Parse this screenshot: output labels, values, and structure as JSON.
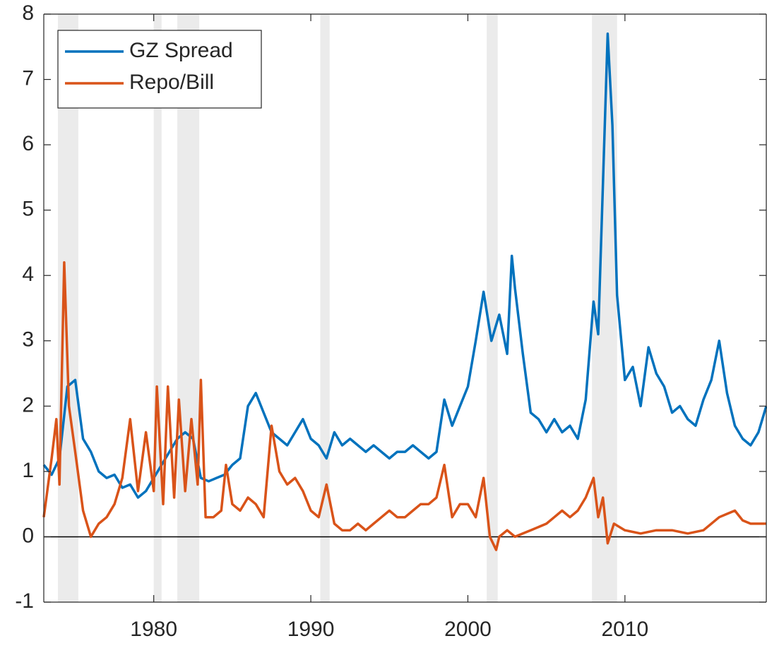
{
  "chart_data": {
    "type": "line",
    "xlim": [
      1973,
      2019
    ],
    "xticks": [
      1980,
      1990,
      2000,
      2010
    ],
    "ylim": [
      -1,
      8
    ],
    "yticks": [
      -1,
      0,
      1,
      2,
      3,
      4,
      5,
      6,
      7,
      8
    ],
    "reference_line": 0,
    "shaded_regions": [
      [
        1973.9,
        1975.2
      ],
      [
        1980.0,
        1980.5
      ],
      [
        1981.5,
        1982.9
      ],
      [
        1990.6,
        1991.2
      ],
      [
        2001.2,
        2001.9
      ],
      [
        2007.9,
        2009.5
      ]
    ],
    "legend": "upper-left",
    "series": [
      {
        "name": "GZ Spread",
        "color": "#0072bd",
        "x": [
          1973,
          1973.5,
          1974,
          1974.5,
          1975,
          1975.5,
          1976,
          1976.5,
          1977,
          1977.5,
          1978,
          1978.5,
          1979,
          1979.5,
          1980,
          1980.5,
          1981,
          1981.5,
          1982,
          1982.5,
          1983,
          1983.5,
          1984,
          1984.5,
          1985,
          1985.5,
          1986,
          1986.5,
          1987,
          1987.5,
          1988,
          1988.5,
          1989,
          1989.5,
          1990,
          1990.5,
          1991,
          1991.5,
          1992,
          1992.5,
          1993,
          1993.5,
          1994,
          1994.5,
          1995,
          1995.5,
          1996,
          1996.5,
          1997,
          1997.5,
          1998,
          1998.5,
          1999,
          1999.5,
          2000,
          2000.5,
          2001,
          2001.5,
          2002,
          2002.5,
          2002.8,
          2003,
          2003.5,
          2004,
          2004.5,
          2005,
          2005.5,
          2006,
          2006.5,
          2007,
          2007.5,
          2008,
          2008.3,
          2008.9,
          2009.2,
          2009.5,
          2010,
          2010.5,
          2011,
          2011.5,
          2012,
          2012.5,
          2013,
          2013.5,
          2014,
          2014.5,
          2015,
          2015.5,
          2016,
          2016.5,
          2017,
          2017.5,
          2018,
          2018.5,
          2019
        ],
        "values": [
          1.1,
          0.95,
          1.2,
          2.3,
          2.4,
          1.5,
          1.3,
          1.0,
          0.9,
          0.95,
          0.75,
          0.8,
          0.6,
          0.7,
          0.9,
          1.1,
          1.3,
          1.5,
          1.6,
          1.5,
          0.9,
          0.85,
          0.9,
          0.95,
          1.1,
          1.2,
          2.0,
          2.2,
          1.9,
          1.6,
          1.5,
          1.4,
          1.6,
          1.8,
          1.5,
          1.4,
          1.2,
          1.6,
          1.4,
          1.5,
          1.4,
          1.3,
          1.4,
          1.3,
          1.2,
          1.3,
          1.3,
          1.4,
          1.3,
          1.2,
          1.3,
          2.1,
          1.7,
          2.0,
          2.3,
          3.0,
          3.75,
          3.0,
          3.4,
          2.8,
          4.3,
          3.8,
          2.8,
          1.9,
          1.8,
          1.6,
          1.8,
          1.6,
          1.7,
          1.5,
          2.1,
          3.6,
          3.1,
          7.7,
          6.3,
          3.7,
          2.4,
          2.6,
          2.0,
          2.9,
          2.5,
          2.3,
          1.9,
          2.0,
          1.8,
          1.7,
          2.1,
          2.4,
          3.0,
          2.2,
          1.7,
          1.5,
          1.4,
          1.6,
          2.0
        ]
      },
      {
        "name": "Repo/Bill",
        "color": "#d95319",
        "x": [
          1973,
          1973.5,
          1973.8,
          1974,
          1974.3,
          1974.6,
          1975,
          1975.5,
          1976,
          1976.5,
          1977,
          1977.5,
          1978,
          1978.5,
          1979,
          1979.5,
          1980,
          1980.2,
          1980.6,
          1980.9,
          1981.3,
          1981.6,
          1982,
          1982.4,
          1982.8,
          1983,
          1983.3,
          1983.8,
          1984.3,
          1984.6,
          1985,
          1985.5,
          1986,
          1986.5,
          1987,
          1987.5,
          1988,
          1988.5,
          1989,
          1989.5,
          1990,
          1990.5,
          1991,
          1991.5,
          1992,
          1992.5,
          1993,
          1993.5,
          1994,
          1994.5,
          1995,
          1995.5,
          1996,
          1996.5,
          1997,
          1997.5,
          1998,
          1998.5,
          1999,
          1999.5,
          2000,
          2000.5,
          2001,
          2001.4,
          2001.8,
          2002,
          2002.5,
          2003,
          2003.5,
          2004,
          2004.5,
          2005,
          2005.5,
          2006,
          2006.5,
          2007,
          2007.5,
          2008,
          2008.3,
          2008.6,
          2008.9,
          2009.3,
          2010,
          2011,
          2012,
          2013,
          2014,
          2015,
          2016,
          2016.5,
          2017,
          2017.5,
          2018,
          2019
        ],
        "values": [
          0.3,
          1.2,
          1.8,
          0.8,
          4.2,
          2.0,
          1.3,
          0.4,
          0.0,
          0.2,
          0.3,
          0.5,
          0.9,
          1.8,
          0.7,
          1.6,
          0.7,
          2.3,
          0.5,
          2.3,
          0.6,
          2.1,
          0.7,
          1.8,
          0.8,
          2.4,
          0.3,
          0.3,
          0.4,
          1.1,
          0.5,
          0.4,
          0.6,
          0.5,
          0.3,
          1.7,
          1.0,
          0.8,
          0.9,
          0.7,
          0.4,
          0.3,
          0.8,
          0.2,
          0.1,
          0.1,
          0.2,
          0.1,
          0.2,
          0.3,
          0.4,
          0.3,
          0.3,
          0.4,
          0.5,
          0.5,
          0.6,
          1.1,
          0.3,
          0.5,
          0.5,
          0.3,
          0.9,
          0.0,
          -0.2,
          0.0,
          0.1,
          0.0,
          0.05,
          0.1,
          0.15,
          0.2,
          0.3,
          0.4,
          0.3,
          0.4,
          0.6,
          0.9,
          0.3,
          0.6,
          -0.1,
          0.2,
          0.1,
          0.05,
          0.1,
          0.1,
          0.05,
          0.1,
          0.3,
          0.35,
          0.4,
          0.25,
          0.2,
          0.2
        ]
      }
    ]
  }
}
